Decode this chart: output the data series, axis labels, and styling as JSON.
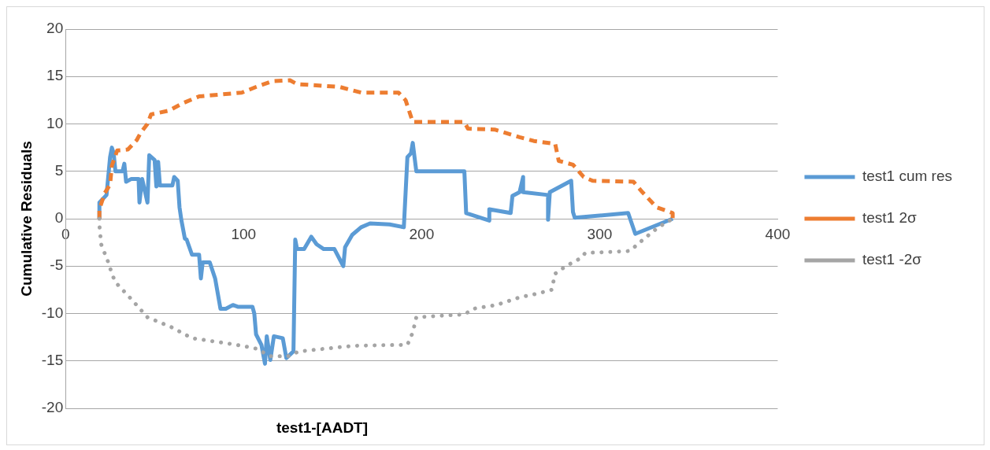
{
  "chart_data": {
    "type": "line",
    "xlabel": "test1-[AADT]",
    "ylabel": "Cumulative Residuals",
    "xlim": [
      0,
      400
    ],
    "xticks": [
      0,
      100,
      200,
      300,
      400
    ],
    "ylim": [
      -20,
      20
    ],
    "yticks": [
      -20,
      -15,
      -10,
      -5,
      0,
      5,
      10,
      15,
      20
    ],
    "grid": "y",
    "legend": "right",
    "marker": "none",
    "series": [
      {
        "name": "test1 cum res",
        "color": "#5b9bd5",
        "line_style": "solid",
        "x": [
          19,
          19,
          23,
          25,
          26,
          27,
          28,
          32,
          33,
          34,
          37,
          41,
          41.5,
          43,
          46,
          47,
          50,
          51,
          52,
          53,
          60,
          61,
          63,
          64,
          65,
          67,
          68,
          71,
          75,
          76,
          77,
          81,
          84,
          87,
          90,
          94,
          97,
          105,
          106,
          107,
          110,
          112,
          113,
          115,
          117,
          122,
          124,
          128,
          129,
          130,
          134,
          138,
          141,
          145,
          151,
          156,
          157,
          161,
          166,
          171,
          182,
          190,
          191,
          192,
          194,
          195,
          197,
          224,
          225,
          238,
          238,
          250,
          251,
          255,
          257,
          257,
          271,
          271,
          272,
          284,
          285,
          286,
          316,
          320,
          341
        ],
        "values": [
          0,
          1.7,
          2.5,
          6.5,
          7.5,
          6.9,
          5,
          5,
          5.8,
          3.9,
          4.2,
          4.2,
          1.7,
          4.2,
          1.7,
          6.7,
          6.2,
          3.4,
          6,
          3.5,
          3.5,
          4.4,
          4,
          1.2,
          -0.1,
          -2.1,
          -2.2,
          -3.8,
          -3.8,
          -6.3,
          -4.6,
          -4.6,
          -6.3,
          -9.5,
          -9.5,
          -9.1,
          -9.3,
          -9.3,
          -10,
          -12.2,
          -13.3,
          -15.3,
          -12.4,
          -14.9,
          -12.4,
          -12.6,
          -14.7,
          -14,
          -2.2,
          -3.2,
          -3.2,
          -1.9,
          -2.7,
          -3.2,
          -3.2,
          -5,
          -3,
          -1.7,
          -0.9,
          -0.5,
          -0.6,
          -0.9,
          2.8,
          6.5,
          6.9,
          8,
          5,
          5,
          0.6,
          -0.2,
          1,
          0.6,
          2.4,
          2.8,
          4.4,
          2.8,
          2.5,
          -0.1,
          2.8,
          4,
          0.7,
          0.1,
          0.6,
          -1.6,
          0
        ]
      },
      {
        "name": "test1 2σ",
        "color": "#ed7d31",
        "line_style": "dashed",
        "x": [
          19,
          19,
          22,
          25,
          26,
          29,
          35,
          40,
          42,
          46,
          48,
          58,
          66,
          75,
          99,
          107,
          116,
          126,
          130,
          154,
          166,
          187,
          191,
          195,
          224,
          226,
          241,
          255,
          263,
          275,
          277,
          285,
          291,
          296,
          319,
          324,
          332,
          341,
          341
        ],
        "values": [
          0,
          1,
          2.7,
          3.6,
          5.6,
          7.2,
          7.3,
          8.3,
          9,
          10,
          11,
          11.4,
          12.2,
          12.9,
          13.3,
          13.9,
          14.5,
          14.6,
          14.2,
          13.9,
          13.3,
          13.3,
          12.5,
          10.2,
          10.2,
          9.5,
          9.4,
          8.6,
          8.2,
          7.9,
          6.1,
          5.7,
          4.4,
          4,
          3.9,
          2.8,
          1.2,
          0.6,
          0
        ]
      },
      {
        "name": "test1 -2σ",
        "color": "#a5a5a5",
        "line_style": "dotted",
        "x": [
          19,
          19,
          20,
          24,
          26,
          28,
          36,
          46,
          59,
          71,
          96,
          107,
          115,
          125,
          131,
          162,
          192,
          195,
          197,
          213,
          224,
          229,
          242,
          255,
          265,
          273,
          275,
          281,
          289,
          292,
          307,
          317,
          325,
          333,
          341
        ],
        "values": [
          0,
          -0.7,
          -2.7,
          -4.6,
          -5.8,
          -6.7,
          -8.3,
          -10.4,
          -11.4,
          -12.6,
          -13.3,
          -13.7,
          -14.5,
          -14.5,
          -14,
          -13.4,
          -13.3,
          -12,
          -10.4,
          -10.2,
          -10.1,
          -9.5,
          -9.1,
          -8.3,
          -7.9,
          -7.5,
          -5.8,
          -5,
          -4.2,
          -3.6,
          -3.5,
          -3.4,
          -2.1,
          -0.9,
          0
        ]
      }
    ]
  }
}
